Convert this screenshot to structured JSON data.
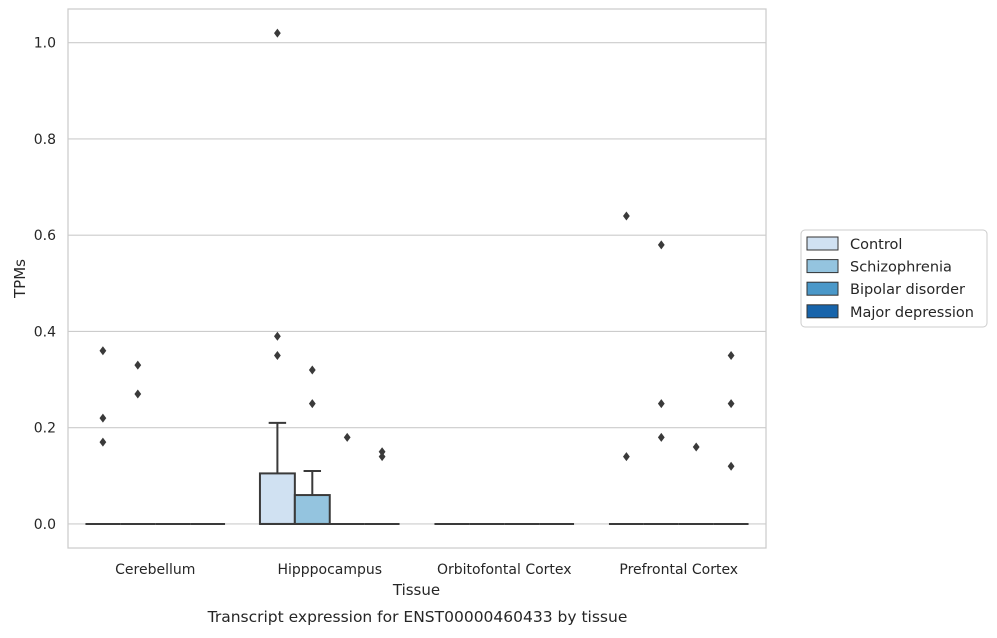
{
  "chart_data": {
    "type": "box",
    "caption": "Transcript expression for ENST00000460433 by tissue",
    "xlabel": "Tissue",
    "ylabel": "TPMs",
    "ylim": [
      -0.05,
      1.07
    ],
    "yticks": [
      0.0,
      0.2,
      0.4,
      0.6,
      0.8,
      1.0
    ],
    "ytick_labels": [
      "0.0",
      "0.2",
      "0.4",
      "0.6",
      "0.8",
      "1.0"
    ],
    "grid": "horizontal",
    "legend_position": "right",
    "categories": [
      "Cerebellum",
      "Hipppocampus",
      "Orbitofontal Cortex",
      "Prefrontal Cortex"
    ],
    "series": [
      {
        "name": "Control",
        "color": "#d0e1f2"
      },
      {
        "name": "Schizophrenia",
        "color": "#94c4df"
      },
      {
        "name": "Bipolar disorder",
        "color": "#4a98c9"
      },
      {
        "name": "Major depression",
        "color": "#1764ab"
      }
    ],
    "boxes": [
      [
        {
          "q1": 0,
          "median": 0,
          "q3": 0,
          "whisker_low": 0,
          "whisker_high": 0,
          "outliers": [
            0.17,
            0.22,
            0.36
          ]
        },
        {
          "q1": 0,
          "median": 0,
          "q3": 0,
          "whisker_low": 0,
          "whisker_high": 0,
          "outliers": [
            0.27,
            0.33
          ]
        },
        {
          "q1": 0,
          "median": 0,
          "q3": 0,
          "whisker_low": 0,
          "whisker_high": 0,
          "outliers": []
        },
        {
          "q1": 0,
          "median": 0,
          "q3": 0,
          "whisker_low": 0,
          "whisker_high": 0,
          "outliers": []
        }
      ],
      [
        {
          "q1": 0,
          "median": 0,
          "q3": 0.105,
          "whisker_low": 0,
          "whisker_high": 0.21,
          "outliers": [
            0.35,
            0.39,
            1.02
          ]
        },
        {
          "q1": 0,
          "median": 0,
          "q3": 0.06,
          "whisker_low": 0,
          "whisker_high": 0.11,
          "outliers": [
            0.25,
            0.32
          ]
        },
        {
          "q1": 0,
          "median": 0,
          "q3": 0,
          "whisker_low": 0,
          "whisker_high": 0,
          "outliers": [
            0.18
          ]
        },
        {
          "q1": 0,
          "median": 0,
          "q3": 0,
          "whisker_low": 0,
          "whisker_high": 0,
          "outliers": [
            0.14,
            0.15
          ]
        }
      ],
      [
        {
          "q1": 0,
          "median": 0,
          "q3": 0,
          "whisker_low": 0,
          "whisker_high": 0,
          "outliers": []
        },
        {
          "q1": 0,
          "median": 0,
          "q3": 0,
          "whisker_low": 0,
          "whisker_high": 0,
          "outliers": []
        },
        {
          "q1": 0,
          "median": 0,
          "q3": 0,
          "whisker_low": 0,
          "whisker_high": 0,
          "outliers": []
        },
        {
          "q1": 0,
          "median": 0,
          "q3": 0,
          "whisker_low": 0,
          "whisker_high": 0,
          "outliers": []
        }
      ],
      [
        {
          "q1": 0,
          "median": 0,
          "q3": 0,
          "whisker_low": 0,
          "whisker_high": 0,
          "outliers": [
            0.14,
            0.64
          ]
        },
        {
          "q1": 0,
          "median": 0,
          "q3": 0,
          "whisker_low": 0,
          "whisker_high": 0,
          "outliers": [
            0.18,
            0.25,
            0.58
          ]
        },
        {
          "q1": 0,
          "median": 0,
          "q3": 0,
          "whisker_low": 0,
          "whisker_high": 0,
          "outliers": [
            0.16
          ]
        },
        {
          "q1": 0,
          "median": 0,
          "q3": 0,
          "whisker_low": 0,
          "whisker_high": 0,
          "outliers": [
            0.12,
            0.25,
            0.35
          ]
        }
      ]
    ]
  }
}
